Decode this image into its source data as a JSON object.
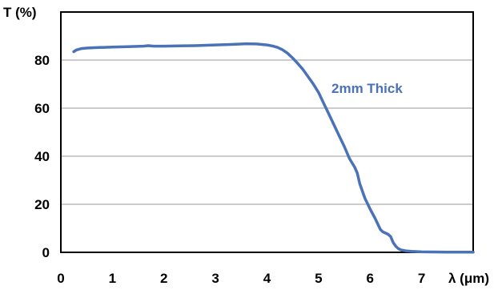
{
  "chart_data": {
    "type": "line",
    "title": "",
    "xlabel": "λ (μm)",
    "ylabel": "T (%)",
    "xlim": [
      0,
      8
    ],
    "ylim": [
      0,
      100
    ],
    "x_ticks": [
      0,
      1,
      2,
      3,
      4,
      5,
      6,
      7
    ],
    "y_ticks": [
      0,
      20,
      40,
      60,
      80
    ],
    "grid": true,
    "series": [
      {
        "name": "2mm Thick",
        "color": "#4a72b8",
        "x": [
          0.25,
          0.3,
          0.4,
          0.5,
          0.7,
          1.0,
          1.3,
          1.6,
          1.7,
          1.8,
          2.0,
          2.3,
          2.6,
          3.0,
          3.3,
          3.6,
          3.8,
          4.0,
          4.1,
          4.2,
          4.3,
          4.4,
          4.5,
          4.6,
          4.7,
          4.8,
          4.9,
          5.0,
          5.1,
          5.2,
          5.3,
          5.4,
          5.5,
          5.6,
          5.7,
          5.75,
          5.8,
          5.9,
          6.0,
          6.1,
          6.2,
          6.25,
          6.3,
          6.35,
          6.4,
          6.45,
          6.5,
          6.55,
          6.6,
          6.65,
          6.7,
          6.8,
          7.0,
          7.5,
          8.0
        ],
        "y": [
          83.5,
          84.2,
          84.8,
          85.0,
          85.2,
          85.4,
          85.6,
          85.8,
          86.0,
          85.8,
          85.8,
          85.9,
          86.0,
          86.3,
          86.5,
          86.8,
          86.7,
          86.3,
          85.9,
          85.3,
          84.3,
          82.8,
          80.8,
          78.5,
          76.0,
          73.0,
          70.0,
          66.5,
          62.0,
          57.5,
          53.0,
          48.5,
          44.0,
          39.0,
          35.5,
          33.0,
          28.5,
          22.5,
          18.0,
          14.0,
          9.5,
          8.5,
          8.0,
          7.5,
          6.5,
          4.0,
          2.5,
          1.5,
          1.0,
          0.8,
          0.6,
          0.4,
          0.2,
          0.1,
          0.1
        ]
      }
    ]
  }
}
